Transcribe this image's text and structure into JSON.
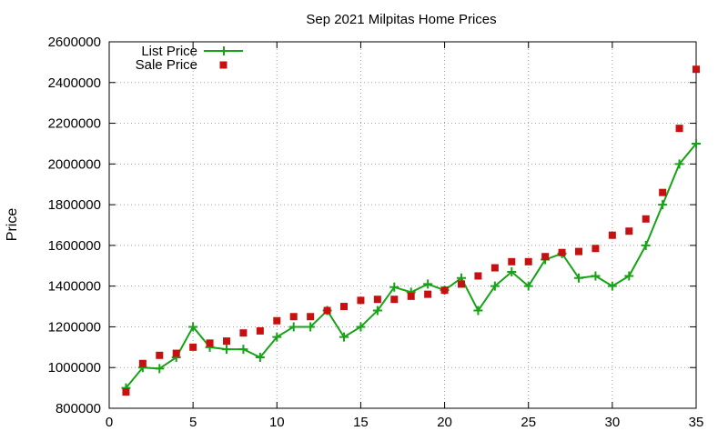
{
  "chart_data": {
    "type": "line",
    "title": "Sep 2021 Milpitas Home Prices",
    "xlabel": "",
    "ylabel": "Price",
    "xlim": [
      0,
      35
    ],
    "ylim": [
      800000,
      2600000
    ],
    "x_ticks": [
      0,
      5,
      10,
      15,
      20,
      25,
      30,
      35
    ],
    "y_ticks": [
      800000,
      1000000,
      1200000,
      1400000,
      1600000,
      1800000,
      2000000,
      2200000,
      2400000,
      2600000
    ],
    "grid": true,
    "legend_position": "top-left",
    "x": [
      1,
      2,
      3,
      4,
      5,
      6,
      7,
      8,
      9,
      10,
      11,
      12,
      13,
      14,
      15,
      16,
      17,
      18,
      19,
      20,
      21,
      22,
      23,
      24,
      25,
      26,
      27,
      28,
      29,
      30,
      31,
      32,
      33,
      34,
      35
    ],
    "series": [
      {
        "name": "List Price",
        "style": "line-with-plus-markers",
        "color": "#16a316",
        "values": [
          900000,
          1000000,
          995000,
          1050000,
          1200000,
          1100000,
          1090000,
          1090000,
          1050000,
          1150000,
          1200000,
          1200000,
          1280000,
          1150000,
          1200000,
          1280000,
          1395000,
          1370000,
          1410000,
          1380000,
          1440000,
          1280000,
          1400000,
          1470000,
          1400000,
          1530000,
          1560000,
          1440000,
          1450000,
          1400000,
          1450000,
          1600000,
          1800000,
          2000000,
          2100000
        ]
      },
      {
        "name": "Sale Price",
        "style": "square-markers",
        "color": "#c81010",
        "values": [
          880000,
          1020000,
          1060000,
          1070000,
          1100000,
          1120000,
          1130000,
          1170000,
          1180000,
          1230000,
          1250000,
          1250000,
          1280000,
          1300000,
          1330000,
          1335000,
          1335000,
          1350000,
          1360000,
          1380000,
          1410000,
          1450000,
          1490000,
          1520000,
          1520000,
          1545000,
          1565000,
          1570000,
          1585000,
          1650000,
          1670000,
          1730000,
          1860000,
          2175000,
          2465000
        ]
      }
    ]
  }
}
